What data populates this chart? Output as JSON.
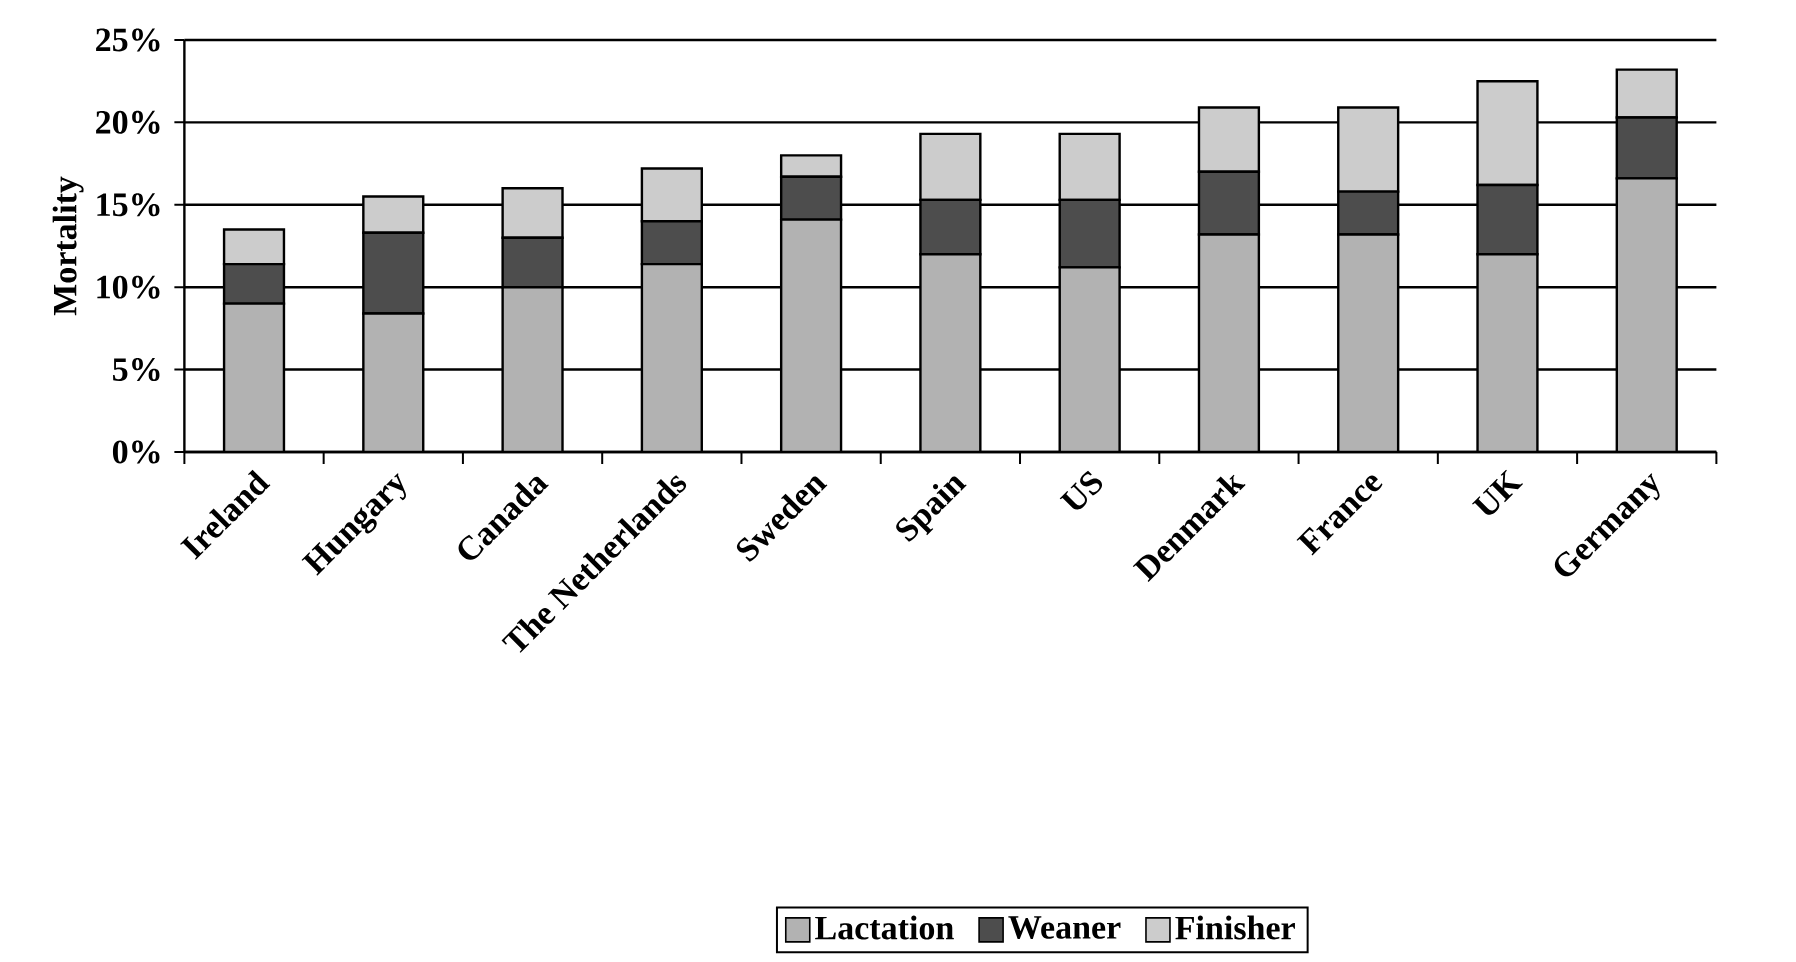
{
  "chart_data": {
    "type": "bar",
    "stacked": true,
    "ylabel": "Mortality",
    "categories": [
      "Ireland",
      "Hungary",
      "Canada",
      "The Netherlands",
      "Sweden",
      "Spain",
      "US",
      "Denmark",
      "France",
      "UK",
      "Germany"
    ],
    "series": [
      {
        "name": "Lactation",
        "color": "#b2b2b2",
        "values": [
          9.0,
          8.4,
          10.0,
          11.4,
          14.1,
          12.0,
          11.2,
          13.2,
          13.2,
          12.0,
          16.6
        ]
      },
      {
        "name": "Weaner",
        "color": "#4d4d4d",
        "values": [
          2.4,
          4.9,
          3.0,
          2.6,
          2.6,
          3.3,
          4.1,
          3.8,
          2.6,
          4.2,
          3.7
        ]
      },
      {
        "name": "Finisher",
        "color": "#cccccc",
        "values": [
          2.1,
          2.2,
          3.0,
          3.2,
          1.3,
          4.0,
          4.0,
          3.9,
          5.1,
          6.3,
          2.9
        ]
      }
    ],
    "ylim": [
      0,
      25
    ],
    "yticks": [
      {
        "value": 0,
        "label": "0%"
      },
      {
        "value": 5,
        "label": "5%"
      },
      {
        "value": 10,
        "label": "10%"
      },
      {
        "value": 15,
        "label": "15%"
      },
      {
        "value": 20,
        "label": "20%"
      },
      {
        "value": 25,
        "label": "25%"
      }
    ],
    "grid": "y",
    "legend": "bottom"
  }
}
